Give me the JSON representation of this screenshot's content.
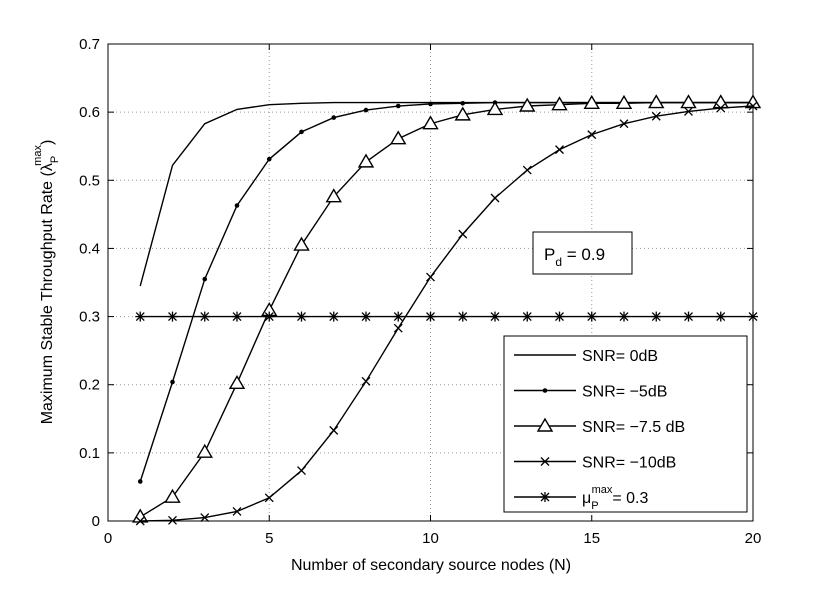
{
  "chart_data": {
    "type": "line",
    "xlabel": "Number of secondary source nodes (N)",
    "ylabel": "Maximum Stable Throughput Rate (λ",
    "ylabel_sub": "P",
    "ylabel_sup": "max",
    "ylabel_close": ")",
    "xlim": [
      0,
      20
    ],
    "ylim": [
      0,
      0.7
    ],
    "xticks": [
      "0",
      "5",
      "10",
      "15",
      "20"
    ],
    "yticks": [
      "0",
      "0.1",
      "0.2",
      "0.3",
      "0.4",
      "0.5",
      "0.6",
      "0.7"
    ],
    "grid": true,
    "legend_position": "lower-right",
    "annotation": {
      "main": "P",
      "sub": "d",
      "rest": " = 0.9"
    },
    "x": [
      1,
      2,
      3,
      4,
      5,
      6,
      7,
      8,
      9,
      10,
      11,
      12,
      13,
      14,
      15,
      16,
      17,
      18,
      19,
      20
    ],
    "series": [
      {
        "name": "SNR= 0dB",
        "marker": "none",
        "values": [
          0.345,
          0.522,
          0.583,
          0.604,
          0.611,
          0.613,
          0.614,
          0.614,
          0.614,
          0.614,
          0.614,
          0.614,
          0.614,
          0.614,
          0.614,
          0.614,
          0.614,
          0.614,
          0.614,
          0.614
        ]
      },
      {
        "name": "SNR= −5dB",
        "marker": "dot",
        "values": [
          0.058,
          0.204,
          0.355,
          0.463,
          0.531,
          0.571,
          0.592,
          0.603,
          0.609,
          0.612,
          0.613,
          0.614,
          0.614,
          0.614,
          0.614,
          0.614,
          0.614,
          0.614,
          0.614,
          0.614
        ]
      },
      {
        "name": "SNR= −7.5 dB",
        "marker": "triangle",
        "values": [
          0.006,
          0.035,
          0.101,
          0.202,
          0.309,
          0.405,
          0.476,
          0.527,
          0.561,
          0.583,
          0.596,
          0.604,
          0.609,
          0.611,
          0.613,
          0.613,
          0.614,
          0.614,
          0.614,
          0.614
        ]
      },
      {
        "name": "SNR= −10dB",
        "marker": "x",
        "values": [
          0.0,
          0.001,
          0.005,
          0.014,
          0.034,
          0.074,
          0.133,
          0.205,
          0.283,
          0.358,
          0.421,
          0.474,
          0.515,
          0.545,
          0.567,
          0.583,
          0.594,
          0.601,
          0.606,
          0.609
        ]
      },
      {
        "name": "= 0.3",
        "name_mu": "μ",
        "name_sub": "P",
        "name_sup": "max",
        "marker": "star",
        "values": [
          0.3,
          0.3,
          0.3,
          0.3,
          0.3,
          0.3,
          0.3,
          0.3,
          0.3,
          0.3,
          0.3,
          0.3,
          0.3,
          0.3,
          0.3,
          0.3,
          0.3,
          0.3,
          0.3,
          0.3
        ]
      }
    ]
  }
}
